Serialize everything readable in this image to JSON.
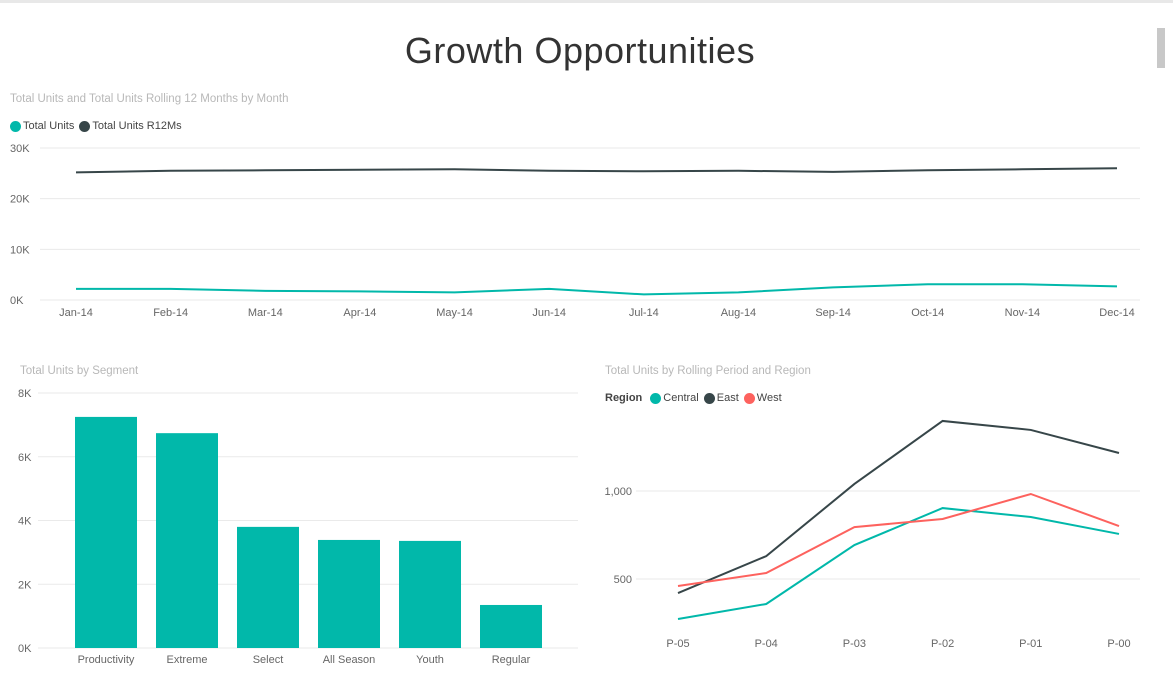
{
  "page": {
    "title": "Growth Opportunities"
  },
  "colors": {
    "teal": "#01B8AA",
    "dark": "#374649",
    "red": "#FD625E",
    "grid": "#eaeaea"
  },
  "chart_data": [
    {
      "type": "line",
      "title": "Total Units and Total Units Rolling 12 Months by Month",
      "legend_position": "top-left",
      "categories": [
        "Jan-14",
        "Feb-14",
        "Mar-14",
        "Apr-14",
        "May-14",
        "Jun-14",
        "Jul-14",
        "Aug-14",
        "Sep-14",
        "Oct-14",
        "Nov-14",
        "Dec-14"
      ],
      "yticks": [
        "0K",
        "10K",
        "20K",
        "30K"
      ],
      "ylim": [
        0,
        30000
      ],
      "series": [
        {
          "name": "Total Units",
          "color": "#01B8AA",
          "values": [
            2200,
            2200,
            1800,
            1700,
            1500,
            2200,
            1100,
            1500,
            2500,
            3100,
            3100,
            2700
          ]
        },
        {
          "name": "Total Units R12Ms",
          "color": "#374649",
          "values": [
            25200,
            25500,
            25600,
            25700,
            25800,
            25500,
            25400,
            25500,
            25300,
            25600,
            25800,
            26000
          ]
        }
      ]
    },
    {
      "type": "bar",
      "title": "Total Units by Segment",
      "categories": [
        "Productivity",
        "Extreme",
        "Select",
        "All Season",
        "Youth",
        "Regular"
      ],
      "values": [
        7250,
        6740,
        3800,
        3390,
        3360,
        1350
      ],
      "yticks": [
        "0K",
        "2K",
        "4K",
        "6K",
        "8K"
      ],
      "ylim": [
        0,
        8000
      ],
      "color": "#01B8AA"
    },
    {
      "type": "line",
      "title": "Total Units by Rolling Period and Region",
      "legend_title": "Region",
      "legend_position": "top-left",
      "categories": [
        "P-05",
        "P-04",
        "P-03",
        "P-02",
        "P-01",
        "P-00"
      ],
      "yticks": [
        "500",
        "1,000"
      ],
      "ytick_values": [
        500,
        1000
      ],
      "ylim": [
        200,
        1460
      ],
      "series": [
        {
          "name": "Central",
          "color": "#01B8AA",
          "values": [
            273,
            358,
            693,
            903,
            852,
            756
          ]
        },
        {
          "name": "East",
          "color": "#374649",
          "values": [
            420,
            630,
            1040,
            1398,
            1347,
            1216
          ]
        },
        {
          "name": "West",
          "color": "#FD625E",
          "values": [
            460,
            534,
            795,
            841,
            983,
            801
          ]
        }
      ]
    }
  ]
}
